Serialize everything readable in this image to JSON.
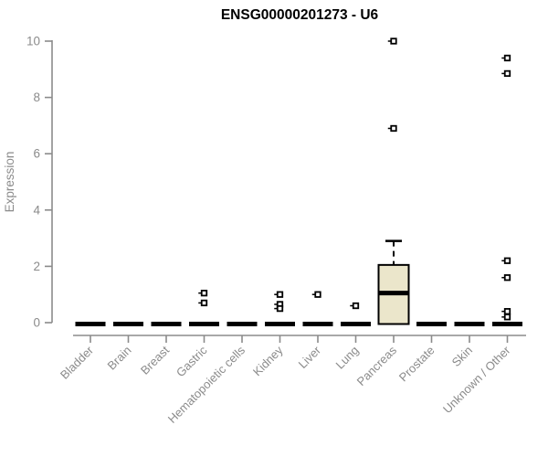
{
  "chart_data": {
    "type": "boxplot",
    "title": "ENSG00000201273 - U6",
    "ylabel": "Expression",
    "xlabel": "",
    "ylim": [
      0,
      10
    ],
    "yticks": [
      0,
      2,
      4,
      6,
      8,
      10
    ],
    "grid": false,
    "legend": false,
    "categories": [
      "Bladder",
      "Brain",
      "Breast",
      "Gastric",
      "Hematopoietic cells",
      "Kidney",
      "Liver",
      "Lung",
      "Pancreas",
      "Prostate",
      "Skin",
      "Unknown / Other"
    ],
    "series": [
      {
        "category": "Bladder",
        "low": 0,
        "q1": 0,
        "median": 0,
        "q3": 0,
        "high": 0,
        "outliers": []
      },
      {
        "category": "Brain",
        "low": 0,
        "q1": 0,
        "median": 0,
        "q3": 0,
        "high": 0,
        "outliers": []
      },
      {
        "category": "Breast",
        "low": 0,
        "q1": 0,
        "median": 0,
        "q3": 0,
        "high": 0,
        "outliers": []
      },
      {
        "category": "Gastric",
        "low": 0,
        "q1": 0,
        "median": 0,
        "q3": 0,
        "high": 0,
        "outliers": [
          1.05,
          0.7
        ]
      },
      {
        "category": "Hematopoietic cells",
        "low": 0,
        "q1": 0,
        "median": 0,
        "q3": 0,
        "high": 0,
        "outliers": []
      },
      {
        "category": "Kidney",
        "low": 0,
        "q1": 0,
        "median": 0,
        "q3": 0,
        "high": 0,
        "outliers": [
          1.0,
          0.65,
          0.5
        ]
      },
      {
        "category": "Liver",
        "low": 0,
        "q1": 0,
        "median": 0,
        "q3": 0,
        "high": 0,
        "outliers": [
          1.0
        ]
      },
      {
        "category": "Lung",
        "low": 0,
        "q1": 0,
        "median": 0,
        "q3": 0,
        "high": 0,
        "outliers": [
          0.6
        ]
      },
      {
        "category": "Pancreas",
        "low": 0,
        "q1": 0,
        "median": 1.05,
        "q3": 2.05,
        "high": 2.9,
        "outliers": [
          6.9,
          10.0
        ]
      },
      {
        "category": "Prostate",
        "low": 0,
        "q1": 0,
        "median": 0,
        "q3": 0,
        "high": 0,
        "outliers": []
      },
      {
        "category": "Skin",
        "low": 0,
        "q1": 0,
        "median": 0,
        "q3": 0,
        "high": 0,
        "outliers": []
      },
      {
        "category": "Unknown / Other",
        "low": 0,
        "q1": 0,
        "median": 0,
        "q3": 0,
        "high": 0,
        "outliers": [
          9.4,
          8.85,
          2.2,
          1.6,
          0.4,
          0.2
        ]
      }
    ],
    "colors": {
      "title": "#000000",
      "axis": "#8b8b8b",
      "tick_label": "#8b8b8b",
      "box_fill": "#ebe6cb",
      "box_stroke": "#000000",
      "flat_box": "#000000",
      "outlier_stroke": "#000000",
      "outlier_fill": "#ffffff",
      "background": "#ffffff"
    }
  }
}
